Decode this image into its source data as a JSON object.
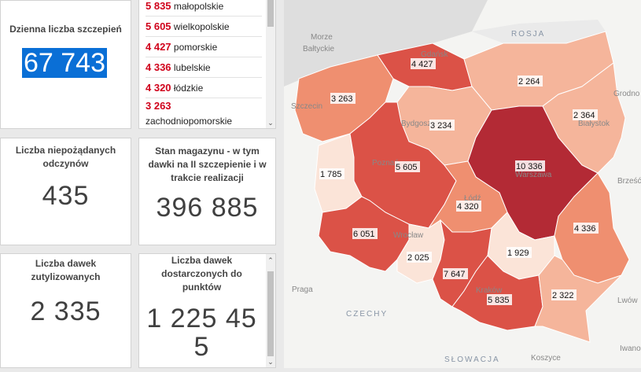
{
  "daily": {
    "title": "Dzienna liczba szczepień",
    "value": "67 743"
  },
  "regions_list": [
    {
      "value": "5 835",
      "name": "małopolskie"
    },
    {
      "value": "5 605",
      "name": "wielkopolskie"
    },
    {
      "value": "4 427",
      "name": "pomorskie"
    },
    {
      "value": "4 336",
      "name": "lubelskie"
    },
    {
      "value": "4 320",
      "name": "łódzkie"
    },
    {
      "value": "3 263",
      "name": "zachodniopomorskie"
    }
  ],
  "adverse": {
    "title_line1": "Liczba niepożądanych",
    "title_line2": "odczynów",
    "value": "435"
  },
  "stock": {
    "title_line1": "Stan magazynu - w tym",
    "title_line2": "dawki na II szczepienie i w",
    "title_line3": "trakcie realizacji",
    "value": "396 885"
  },
  "utilized": {
    "title_line1": "Liczba dawek",
    "title_line2": "zutylizowanych",
    "value": "2 335"
  },
  "delivered": {
    "title_line1": "Liczba dawek",
    "title_line2": "dostarczonych do",
    "title_line3": "punktów",
    "value_line1": "1 225 45",
    "value_line2": "5"
  },
  "map": {
    "labels": {
      "zachodniopomorskie": "3 263",
      "pomorskie": "4 427",
      "warminsko_mazurskie": "2 264",
      "podlaskie": "2 364",
      "kujawsko_pomorskie": "3 234",
      "lubuskie": "1 785",
      "wielkopolskie": "5 605",
      "mazowieckie": "10 336",
      "lodzkie": "4 320",
      "lubelskie": "4 336",
      "dolnoslaskie": "6 051",
      "opolskie": "2 025",
      "swietokrzyskie": "1 929",
      "slaskie": "7 647",
      "malopolskie": "5 835",
      "podkarpackie": "2 322"
    },
    "basemap": {
      "morze": "Morze",
      "baltyckie": "Bałtyckie",
      "rosja": "ROSJA",
      "gdansk": "Gdańsk",
      "szczecin": "Szczecin",
      "bydgoszcz": "Bydgoszcz",
      "grodno": "Grodno",
      "bialystok": "Białystok",
      "poznan": "Poznań",
      "warszawa": "Warszawa",
      "lodz": "Łódź",
      "brzesc": "Brześć",
      "wroclaw": "Wrocław",
      "praga": "Praga",
      "czechy": "CZECHY",
      "krakow": "Kraków",
      "lwow": "Lwów",
      "slowacja": "SŁOWACJA",
      "koszyce": "Koszyce",
      "iwano": "Iwano"
    },
    "colors": {
      "lightest": "#fbe4d8",
      "light": "#f5b59b",
      "mid": "#ef8f70",
      "strong": "#db5247",
      "darkest": "#b32a35"
    }
  }
}
